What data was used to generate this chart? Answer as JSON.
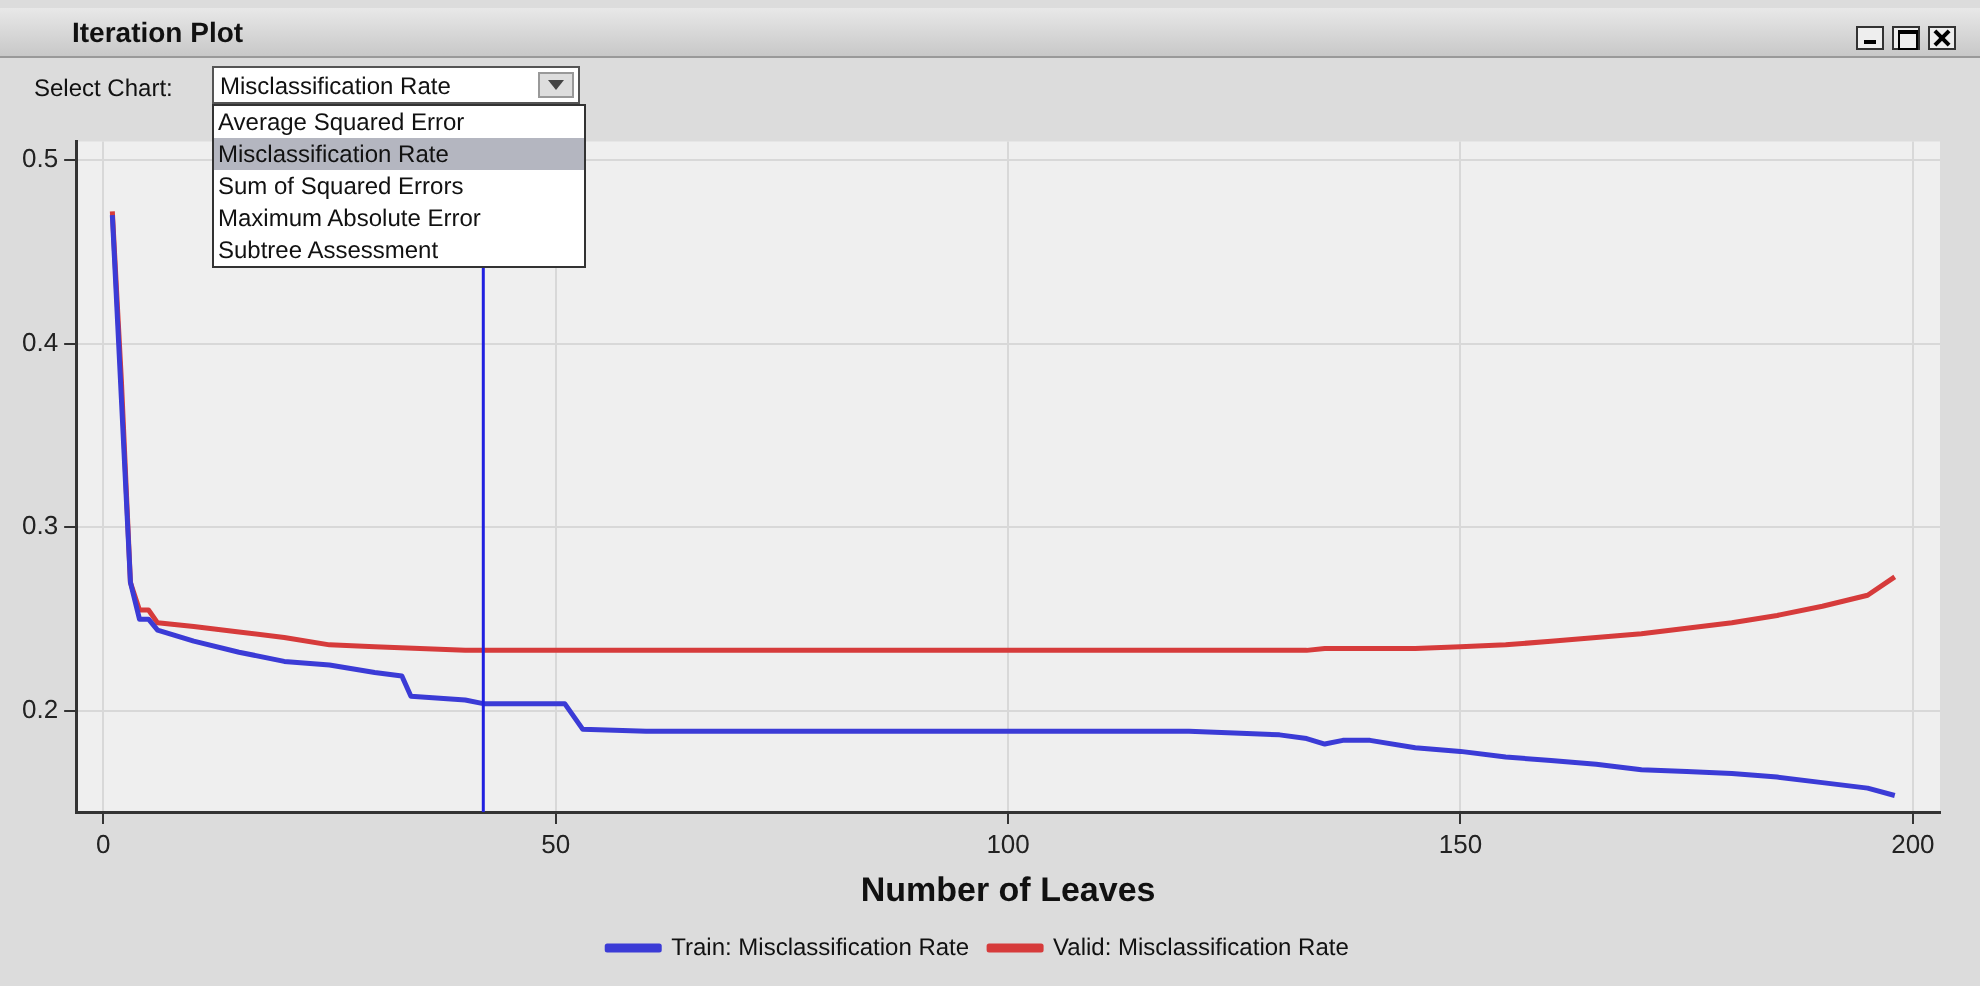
{
  "chart_data": {
    "type": "line",
    "title": "Iteration Plot",
    "xlabel": "Number of Leaves",
    "annotations": [
      "Select Chart:",
      "Misclassification Rate",
      "Average Squared Error",
      "Misclassification Rate",
      "Sum of Squared Errors",
      "Maximum Absolute Error",
      "Subtree Assessment"
    ],
    "xlim": [
      -3,
      203
    ],
    "xticks": [
      0,
      50,
      100,
      150,
      200
    ],
    "ylim": [
      0.145,
      0.51
    ],
    "yticks": [
      0.2,
      0.3,
      0.4,
      0.5
    ],
    "grid": true,
    "legend": "bottom",
    "marker": "none",
    "line_style": "solid",
    "ref_lines": [
      {
        "axis": "x",
        "value": 42,
        "color": "#2020e0"
      }
    ],
    "series": [
      {
        "name": "Train: Misclassification Rate",
        "color": "#3b3bd6",
        "x": [
          1,
          2,
          3,
          4,
          5,
          6,
          10,
          15,
          20,
          25,
          30,
          33,
          34,
          40,
          42,
          51,
          53,
          60,
          120,
          125,
          130,
          133,
          135,
          137,
          140,
          145,
          150,
          155,
          160,
          165,
          170,
          175,
          180,
          185,
          190,
          195,
          198
        ],
        "values": [
          0.47,
          0.37,
          0.27,
          0.25,
          0.25,
          0.244,
          0.238,
          0.232,
          0.227,
          0.225,
          0.221,
          0.219,
          0.208,
          0.206,
          0.204,
          0.204,
          0.19,
          0.189,
          0.189,
          0.188,
          0.187,
          0.185,
          0.182,
          0.184,
          0.184,
          0.18,
          0.178,
          0.175,
          0.173,
          0.171,
          0.168,
          0.167,
          0.166,
          0.164,
          0.161,
          0.158,
          0.154
        ]
      },
      {
        "name": "Valid: Misclassification Rate",
        "color": "#d63b3b",
        "x": [
          1,
          2,
          3,
          4,
          5,
          6,
          10,
          15,
          20,
          25,
          30,
          35,
          40,
          133,
          135,
          145,
          150,
          155,
          160,
          165,
          170,
          175,
          180,
          185,
          190,
          195,
          198
        ],
        "values": [
          0.472,
          0.38,
          0.27,
          0.255,
          0.255,
          0.248,
          0.246,
          0.243,
          0.24,
          0.236,
          0.235,
          0.234,
          0.233,
          0.233,
          0.234,
          0.234,
          0.235,
          0.236,
          0.238,
          0.24,
          0.242,
          0.245,
          0.248,
          0.252,
          0.257,
          0.263,
          0.273
        ]
      }
    ]
  }
}
